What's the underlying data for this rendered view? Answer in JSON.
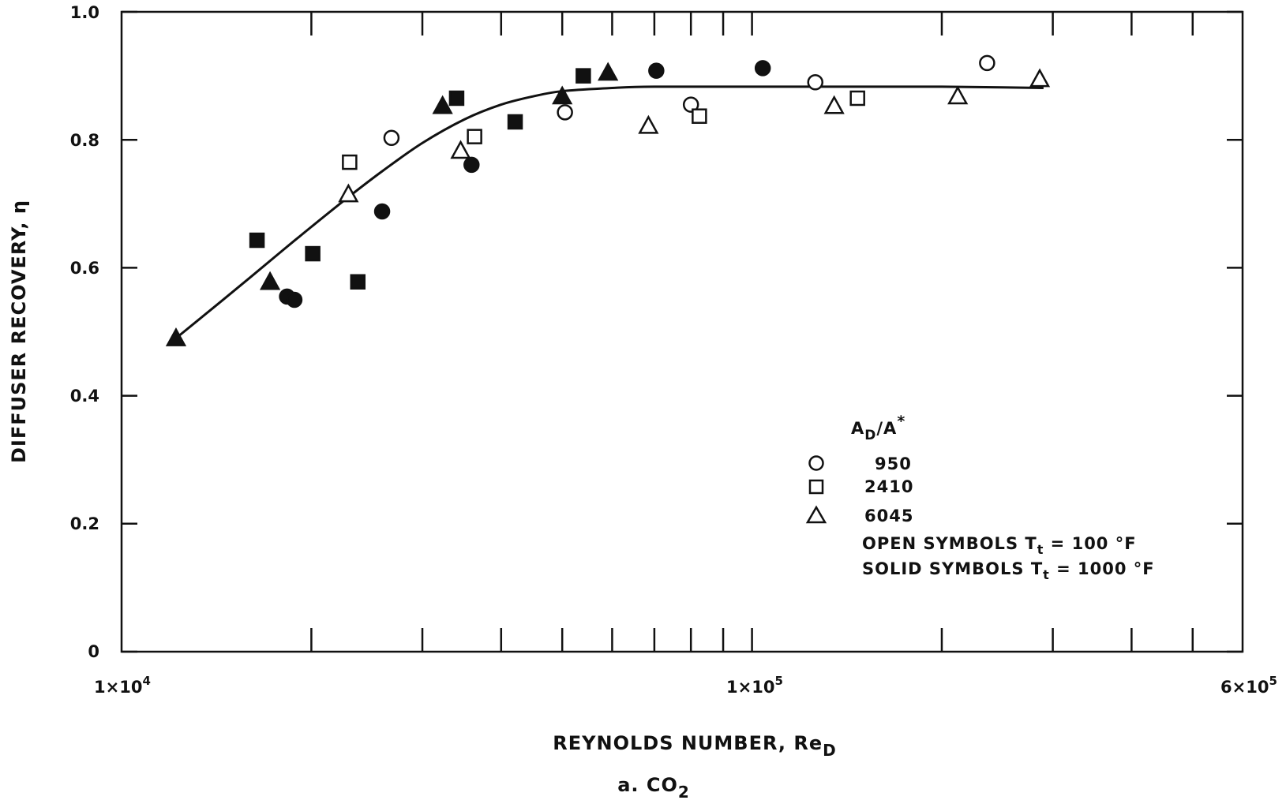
{
  "chart_data": {
    "type": "scatter",
    "x_scale": "log",
    "xlim": [
      10000,
      600000
    ],
    "ylim": [
      0,
      1.0
    ],
    "x_tick_labels": [
      {
        "value": 10000,
        "mant": "1",
        "exp": "4"
      },
      {
        "value": 100000,
        "mant": "1",
        "exp": "5"
      },
      {
        "value": 600000,
        "mant": "6",
        "exp": "5"
      }
    ],
    "y_ticks": [
      0,
      0.2,
      0.4,
      0.6,
      0.8,
      1.0
    ],
    "y_tick_labels": [
      "0",
      "0.2",
      "0.4",
      "0.6",
      "0.8",
      "1.0"
    ],
    "xlabel": "REYNOLDS NUMBER, Re",
    "xlabel_sub": "D",
    "ylabel": "DIFFUSER RECOVERY, η",
    "caption": "a. CO",
    "caption_sub": "2",
    "grid": false,
    "legend": {
      "title_main": "A",
      "title_sub": "D",
      "title_rest": "/A",
      "title_sup": "*",
      "entries": [
        {
          "marker": "circle",
          "label": "950"
        },
        {
          "marker": "square",
          "label": "2410"
        },
        {
          "marker": "triangle",
          "label": "6045"
        }
      ],
      "open_note": {
        "text": "OPEN SYMBOLS T",
        "sub": "t",
        "rest": " = 100 °F"
      },
      "solid_note": {
        "text": "SOLID SYMBOLS T",
        "sub": "t",
        "rest": " = 1000 °F"
      }
    },
    "series": [
      {
        "marker": "circle",
        "filled": false,
        "points": [
          [
            26800,
            0.803
          ],
          [
            50500,
            0.843
          ],
          [
            80000,
            0.855
          ],
          [
            126000,
            0.89
          ],
          [
            236000,
            0.92
          ]
        ]
      },
      {
        "marker": "square",
        "filled": false,
        "points": [
          [
            23000,
            0.765
          ],
          [
            36300,
            0.805
          ],
          [
            82500,
            0.837
          ],
          [
            147000,
            0.865
          ]
        ]
      },
      {
        "marker": "triangle",
        "filled": false,
        "points": [
          [
            22900,
            0.715
          ],
          [
            34500,
            0.783
          ],
          [
            68500,
            0.822
          ],
          [
            135000,
            0.853
          ],
          [
            212000,
            0.868
          ],
          [
            286000,
            0.895
          ]
        ]
      },
      {
        "marker": "circle",
        "filled": true,
        "points": [
          [
            18300,
            0.555
          ],
          [
            18800,
            0.55
          ],
          [
            25900,
            0.688
          ],
          [
            35900,
            0.761
          ],
          [
            70500,
            0.908
          ],
          [
            104000,
            0.912
          ]
        ]
      },
      {
        "marker": "square",
        "filled": true,
        "points": [
          [
            16400,
            0.643
          ],
          [
            20100,
            0.622
          ],
          [
            23700,
            0.578
          ],
          [
            34000,
            0.865
          ],
          [
            42100,
            0.828
          ],
          [
            54000,
            0.9
          ]
        ]
      },
      {
        "marker": "triangle",
        "filled": true,
        "points": [
          [
            12200,
            0.49
          ],
          [
            17200,
            0.578
          ],
          [
            32300,
            0.853
          ],
          [
            50000,
            0.868
          ],
          [
            59100,
            0.905
          ]
        ]
      }
    ],
    "fit_curve": [
      [
        12200,
        0.49
      ],
      [
        14000,
        0.538
      ],
      [
        16000,
        0.585
      ],
      [
        18000,
        0.627
      ],
      [
        20000,
        0.664
      ],
      [
        23000,
        0.712
      ],
      [
        26000,
        0.752
      ],
      [
        30000,
        0.795
      ],
      [
        35000,
        0.832
      ],
      [
        40000,
        0.855
      ],
      [
        45000,
        0.868
      ],
      [
        50000,
        0.876
      ],
      [
        60000,
        0.881
      ],
      [
        70000,
        0.883
      ],
      [
        100000,
        0.883
      ],
      [
        150000,
        0.883
      ],
      [
        200000,
        0.883
      ],
      [
        250000,
        0.882
      ],
      [
        290000,
        0.881
      ]
    ]
  }
}
